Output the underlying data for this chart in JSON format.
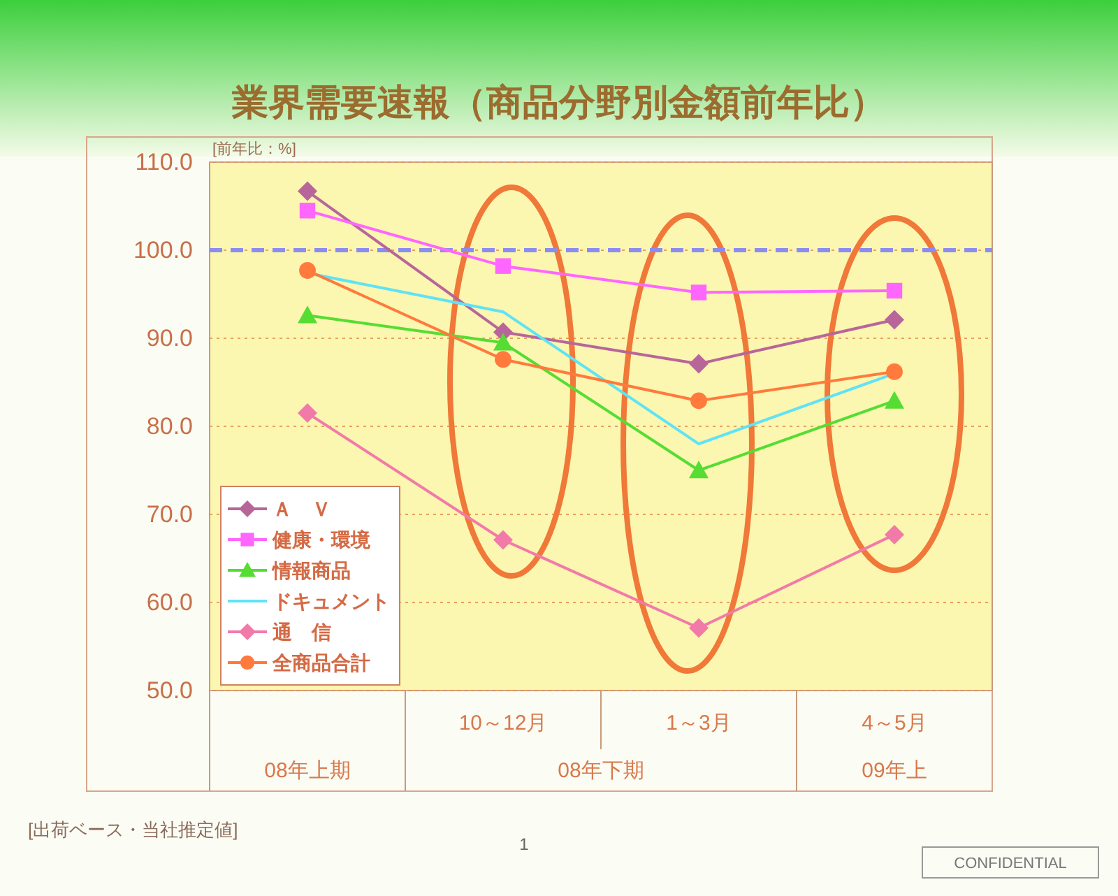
{
  "chart_data": {
    "type": "line",
    "title": "業界需要速報（商品分野別金額前年比）",
    "ylabel": "[前年比：%]",
    "categories": [
      null,
      "10～12月",
      "1～3月",
      "4～5月"
    ],
    "series": [
      {
        "name": "Ａ　Ｖ",
        "color": "#b8669a",
        "marker": "diamond",
        "values": [
          106.7,
          90.7,
          87.1,
          92.1
        ]
      },
      {
        "name": "健康・環境",
        "color": "#ff66ff",
        "marker": "square",
        "values": [
          104.5,
          98.2,
          95.2,
          95.4
        ]
      },
      {
        "name": "情報商品",
        "color": "#55dd33",
        "marker": "triangle",
        "values": [
          92.6,
          89.5,
          75.0,
          82.9
        ]
      },
      {
        "name": "ドキュメント",
        "color": "#5fe3f5",
        "marker": "none",
        "values": [
          97.4,
          93.0,
          78.0,
          86.0
        ]
      },
      {
        "name": "通　信",
        "color": "#f27aa8",
        "marker": "diamond",
        "values": [
          81.5,
          67.1,
          57.1,
          67.7
        ]
      },
      {
        "name": "全商品合計",
        "color": "#ff7a3c",
        "marker": "circle",
        "values": [
          97.7,
          87.6,
          82.9,
          86.2
        ]
      }
    ],
    "ylim": [
      50,
      110
    ],
    "yticks": [
      {
        "value": 50,
        "label": "50.0"
      },
      {
        "value": 60,
        "label": "60.0"
      },
      {
        "value": 70,
        "label": "70.0"
      },
      {
        "value": 80,
        "label": "80.0"
      },
      {
        "value": 90,
        "label": "90.0"
      },
      {
        "value": 100,
        "label": "100.0"
      },
      {
        "value": 110,
        "label": "110.0"
      }
    ],
    "grid": "y",
    "legend": "bottom left",
    "ref_lines": [
      {
        "axis": "y",
        "value": 100,
        "color": "#8c8cf0",
        "line_style": "dashed"
      }
    ],
    "annotations": [
      "08年上期",
      "08年下期",
      "09年上",
      "[出荷ベース・当社推定値]",
      "1",
      "CONFIDENTIAL"
    ]
  }
}
